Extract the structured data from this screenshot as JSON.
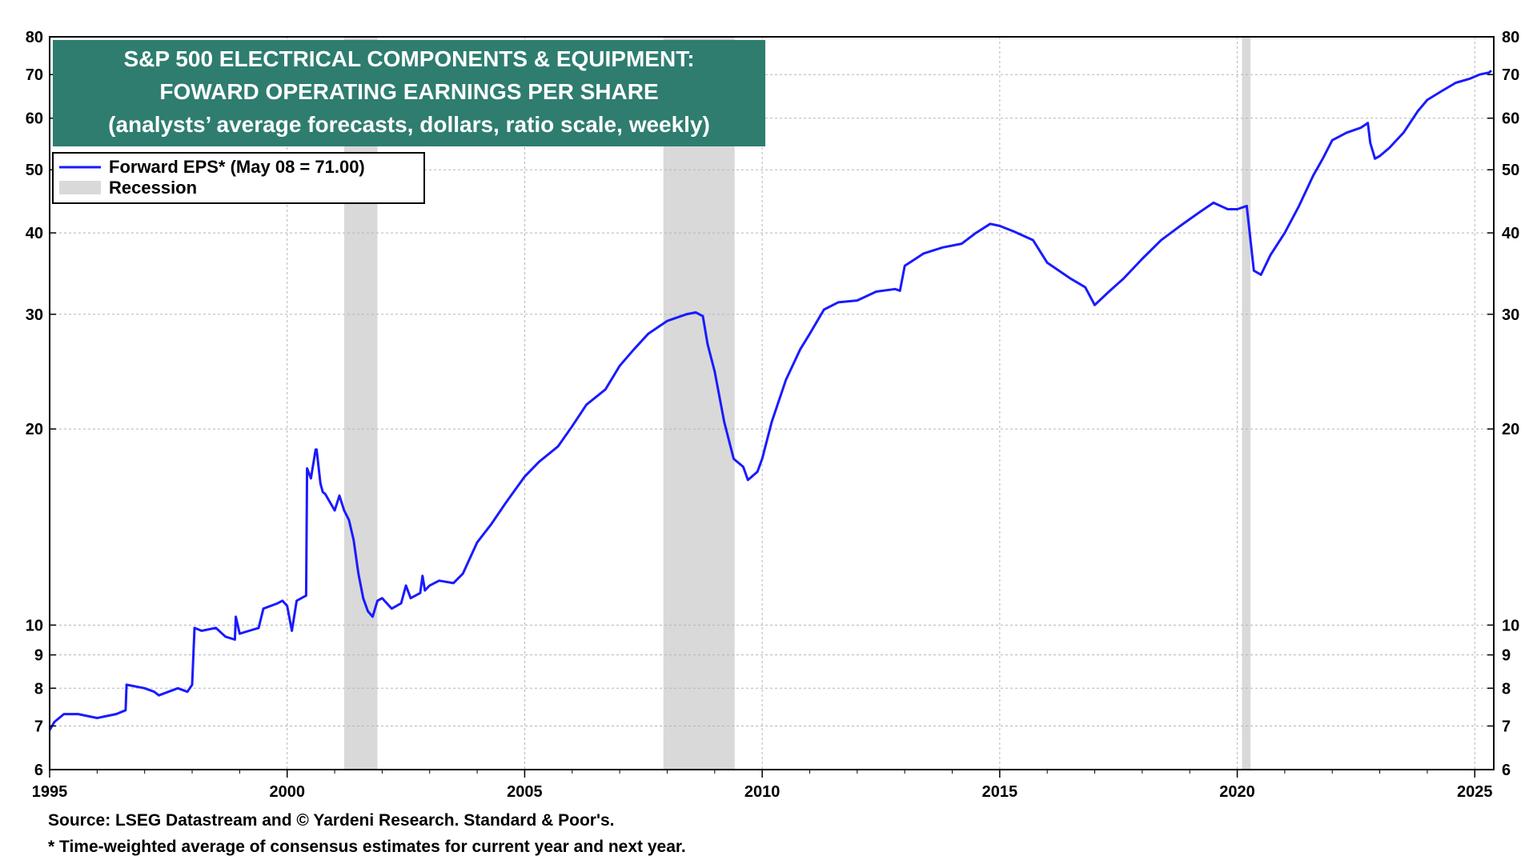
{
  "chart_data": {
    "type": "line",
    "title": [
      "S&P 500 ELECTRICAL COMPONENTS & EQUIPMENT:",
      "FOWARD OPERATING EARNINGS PER SHARE",
      "(analysts’ average forecasts, dollars, ratio scale, weekly)"
    ],
    "y_scale": "log",
    "ylim": [
      6,
      80
    ],
    "xlim": [
      1995,
      2025.4
    ],
    "y_ticks": [
      6,
      7,
      8,
      9,
      10,
      20,
      30,
      40,
      50,
      60,
      70,
      80
    ],
    "x_ticks": [
      1995,
      2000,
      2005,
      2010,
      2015,
      2020,
      2025
    ],
    "legend_position": "top-left",
    "grid": true,
    "colors": {
      "series": "#1a1aff",
      "recession": "#d9d9d9",
      "title_bg": "#2e7d6f"
    },
    "series": [
      {
        "name": "Forward EPS* (May 08 = 71.00)",
        "x": [
          1995.0,
          1995.1,
          1995.3,
          1995.6,
          1996.0,
          1996.4,
          1996.6,
          1996.62,
          1997.0,
          1997.2,
          1997.3,
          1997.5,
          1997.7,
          1997.9,
          1998.0,
          1998.05,
          1998.2,
          1998.5,
          1998.7,
          1998.9,
          1998.92,
          1999.0,
          1999.2,
          1999.4,
          1999.5,
          1999.8,
          1999.9,
          2000.0,
          2000.1,
          2000.2,
          2000.3,
          2000.4,
          2000.42,
          2000.5,
          2000.6,
          2000.62,
          2000.7,
          2000.75,
          2000.8,
          2001.0,
          2001.1,
          2001.2,
          2001.3,
          2001.4,
          2001.5,
          2001.6,
          2001.7,
          2001.8,
          2001.9,
          2002.0,
          2002.2,
          2002.4,
          2002.5,
          2002.6,
          2002.8,
          2002.85,
          2002.9,
          2003.0,
          2003.2,
          2003.5,
          2003.7,
          2004.0,
          2004.3,
          2004.6,
          2005.0,
          2005.3,
          2005.7,
          2006.0,
          2006.3,
          2006.7,
          2007.0,
          2007.3,
          2007.6,
          2008.0,
          2008.4,
          2008.6,
          2008.75,
          2008.85,
          2009.0,
          2009.2,
          2009.4,
          2009.6,
          2009.7,
          2009.9,
          2010.0,
          2010.2,
          2010.5,
          2010.8,
          2011.0,
          2011.3,
          2011.6,
          2012.0,
          2012.4,
          2012.8,
          2012.9,
          2013.0,
          2013.4,
          2013.8,
          2014.2,
          2014.5,
          2014.8,
          2015.0,
          2015.3,
          2015.7,
          2016.0,
          2016.5,
          2016.8,
          2017.0,
          2017.3,
          2017.6,
          2018.0,
          2018.4,
          2018.8,
          2019.2,
          2019.5,
          2019.8,
          2020.0,
          2020.2,
          2020.35,
          2020.5,
          2020.7,
          2021.0,
          2021.3,
          2021.6,
          2021.8,
          2022.0,
          2022.3,
          2022.6,
          2022.75,
          2022.8,
          2022.9,
          2023.0,
          2023.2,
          2023.5,
          2023.8,
          2024.0,
          2024.3,
          2024.6,
          2024.9,
          2025.1,
          2025.3,
          2025.35
        ],
        "values": [
          6.9,
          7.1,
          7.3,
          7.3,
          7.2,
          7.3,
          7.4,
          8.1,
          8.0,
          7.9,
          7.8,
          7.9,
          8.0,
          7.9,
          8.1,
          9.9,
          9.8,
          9.9,
          9.6,
          9.5,
          10.3,
          9.7,
          9.8,
          9.9,
          10.6,
          10.8,
          10.9,
          10.7,
          9.8,
          10.9,
          11.0,
          11.1,
          17.4,
          16.8,
          18.6,
          18.6,
          16.5,
          16.0,
          15.9,
          15.0,
          15.8,
          15.0,
          14.5,
          13.5,
          12.0,
          11.0,
          10.5,
          10.3,
          10.9,
          11.0,
          10.6,
          10.8,
          11.5,
          11.0,
          11.2,
          11.9,
          11.3,
          11.5,
          11.7,
          11.6,
          12.0,
          13.4,
          14.3,
          15.4,
          16.9,
          17.8,
          18.8,
          20.2,
          21.8,
          23.0,
          25.0,
          26.5,
          28.0,
          29.3,
          30.0,
          30.2,
          29.8,
          27.0,
          24.5,
          20.5,
          18.0,
          17.5,
          16.7,
          17.2,
          18.0,
          20.5,
          23.8,
          26.5,
          28.0,
          30.5,
          31.3,
          31.5,
          32.5,
          32.8,
          32.6,
          35.6,
          37.2,
          38.0,
          38.5,
          40.0,
          41.3,
          41.0,
          40.2,
          39.0,
          36.0,
          34.0,
          33.0,
          31.0,
          32.5,
          34.0,
          36.5,
          39.0,
          41.0,
          43.0,
          44.5,
          43.5,
          43.5,
          44.0,
          35.0,
          34.5,
          37.0,
          40.0,
          44.0,
          49.0,
          52.0,
          55.5,
          57.0,
          58.0,
          59.0,
          55.0,
          52.0,
          52.5,
          54.0,
          57.0,
          61.5,
          64.0,
          66.0,
          68.0,
          69.0,
          70.0,
          70.5,
          71.0
        ]
      }
    ],
    "recessions": [
      [
        2001.2,
        2001.9
      ],
      [
        2007.92,
        2009.42
      ],
      [
        2020.1,
        2020.28
      ]
    ],
    "legend": {
      "series_label": "Forward EPS* (May 08 = 71.00)",
      "recession_label": "Recession"
    },
    "source": "Source: LSEG Datastream and © Yardeni Research. Standard & Poor's.",
    "note": "* Time-weighted average of consensus estimates for current year and next year."
  }
}
